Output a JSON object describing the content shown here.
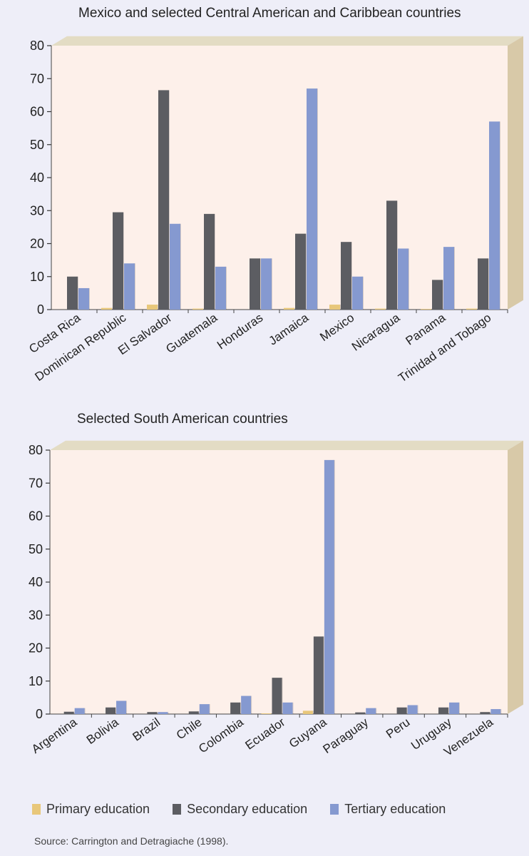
{
  "colors": {
    "primary": "#e8c77a",
    "secondary": "#5c5d62",
    "tertiary": "#8599d0",
    "plot_bg": "#fdf0ea",
    "wall_top": "#e3dcc4",
    "wall_side": "#d8c9a8"
  },
  "legend": [
    {
      "label": "Primary education",
      "color_key": "primary"
    },
    {
      "label": "Secondary education",
      "color_key": "secondary"
    },
    {
      "label": "Tertiary education",
      "color_key": "tertiary"
    }
  ],
  "source": "Source: Carrington and Detragiache (1998).",
  "chart_data": [
    {
      "type": "bar",
      "title": "Mexico and selected Central American and Caribbean countries",
      "categories": [
        "Costa Rica",
        "Dominican Republic",
        "El Salvador",
        "Guatemala",
        "Honduras",
        "Jamaica",
        "Mexico",
        "Nicaragua",
        "Panama",
        "Trinidad and Tobago"
      ],
      "series": [
        {
          "name": "Primary education",
          "values": [
            0,
            0.5,
            1.5,
            0.3,
            0,
            0.5,
            1.5,
            0.3,
            0.2,
            0.3
          ]
        },
        {
          "name": "Secondary education",
          "values": [
            10,
            29.5,
            66.5,
            29,
            15.5,
            23,
            20.5,
            33,
            9,
            15.5
          ]
        },
        {
          "name": "Tertiary education",
          "values": [
            6.5,
            14,
            26,
            13,
            15.5,
            67,
            10,
            18.5,
            19,
            57
          ]
        }
      ],
      "yticks": [
        0,
        10,
        20,
        30,
        40,
        50,
        60,
        70,
        80
      ],
      "ylim": [
        0,
        80
      ],
      "grid": false,
      "legend": "bottom"
    },
    {
      "type": "bar",
      "title": "Selected South American countries",
      "categories": [
        "Argentina",
        "Bolivia",
        "Brazil",
        "Chile",
        "Colombia",
        "Ecuador",
        "Guyana",
        "Paraguay",
        "Peru",
        "Uruguay",
        "Venezuela"
      ],
      "series": [
        {
          "name": "Primary education",
          "values": [
            0,
            0,
            0,
            0,
            0,
            0.2,
            1,
            0,
            0,
            0,
            0
          ]
        },
        {
          "name": "Secondary education",
          "values": [
            0.7,
            2,
            0.6,
            0.8,
            3.5,
            11,
            23.5,
            0.5,
            2,
            2,
            0.6
          ]
        },
        {
          "name": "Tertiary education",
          "values": [
            1.8,
            4,
            0.6,
            3,
            5.5,
            3.5,
            77,
            1.8,
            2.7,
            3.5,
            1.5
          ]
        }
      ],
      "yticks": [
        0,
        10,
        20,
        30,
        40,
        50,
        60,
        70,
        80
      ],
      "ylim": [
        0,
        80
      ],
      "grid": false,
      "legend": "bottom"
    }
  ]
}
